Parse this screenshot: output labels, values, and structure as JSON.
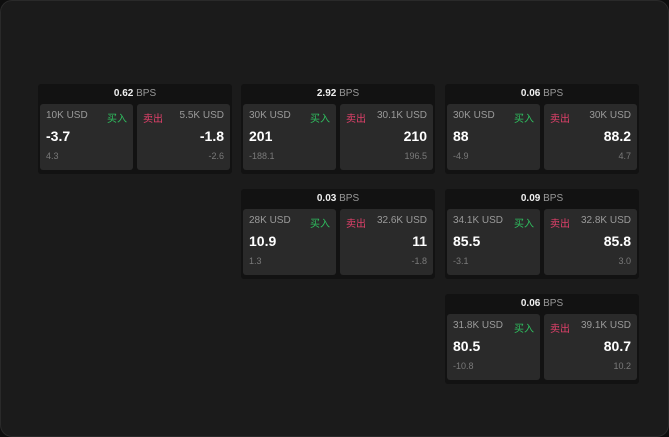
{
  "unit": "BPS",
  "buy_label": "买入",
  "sell_label": "卖出",
  "colors": {
    "buy": "#2fbf5f",
    "sell": "#e0406a"
  },
  "panels": [
    {
      "spread": "0.62",
      "bid": {
        "size": "10K USD",
        "price": "-3.7",
        "change": "4.3"
      },
      "ask": {
        "size": "5.5K USD",
        "price": "-1.8",
        "change": "-2.6"
      }
    },
    {
      "spread": "2.92",
      "bid": {
        "size": "30K USD",
        "price": "201",
        "change": "-188.1"
      },
      "ask": {
        "size": "30.1K USD",
        "price": "210",
        "change": "196.5"
      }
    },
    {
      "spread": "0.06",
      "bid": {
        "size": "30K USD",
        "price": "88",
        "change": "-4.9"
      },
      "ask": {
        "size": "30K USD",
        "price": "88.2",
        "change": "4.7"
      }
    },
    {
      "spread": "0.03",
      "bid": {
        "size": "28K USD",
        "price": "10.9",
        "change": "1.3"
      },
      "ask": {
        "size": "32.6K USD",
        "price": "11",
        "change": "-1.8"
      }
    },
    {
      "spread": "0.09",
      "bid": {
        "size": "34.1K USD",
        "price": "85.5",
        "change": "-3.1"
      },
      "ask": {
        "size": "32.8K USD",
        "price": "85.8",
        "change": "3.0"
      }
    },
    {
      "spread": "0.06",
      "bid": {
        "size": "31.8K USD",
        "price": "80.5",
        "change": "-10.8"
      },
      "ask": {
        "size": "39.1K USD",
        "price": "80.7",
        "change": "10.2"
      }
    }
  ]
}
